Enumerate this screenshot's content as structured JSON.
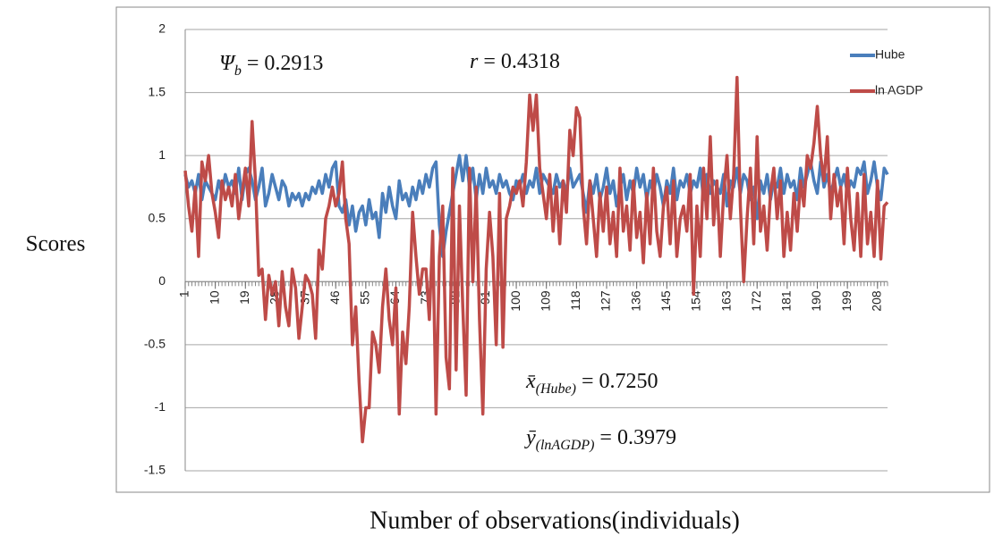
{
  "chart_data": {
    "type": "line",
    "y_axis_label": "Scores",
    "x_axis_label": "Number of observations(individuals)",
    "annotations": [
      {
        "main": "Ψ",
        "sub": "b",
        "rest": " =  0.2913"
      },
      {
        "main": "r",
        "rest": " = 0.4318"
      },
      {
        "main": "x̄",
        "sub": "(Hube)",
        "rest": " = 0.7250"
      },
      {
        "main": "ȳ",
        "sub": "(lnAGDP)",
        "rest": " = 0.3979"
      }
    ],
    "x": [
      1,
      2,
      3,
      4,
      5,
      6,
      7,
      8,
      9,
      10,
      11,
      12,
      13,
      14,
      15,
      16,
      17,
      18,
      19,
      20,
      21,
      22,
      23,
      24,
      25,
      26,
      27,
      28,
      29,
      30,
      31,
      32,
      33,
      34,
      35,
      36,
      37,
      38,
      39,
      40,
      41,
      42,
      43,
      44,
      45,
      46,
      47,
      48,
      49,
      50,
      51,
      52,
      53,
      54,
      55,
      56,
      57,
      58,
      59,
      60,
      61,
      62,
      63,
      64,
      65,
      66,
      67,
      68,
      69,
      70,
      71,
      72,
      73,
      74,
      75,
      76,
      77,
      78,
      79,
      80,
      81,
      82,
      83,
      84,
      85,
      86,
      87,
      88,
      89,
      90,
      91,
      92,
      93,
      94,
      95,
      96,
      97,
      98,
      99,
      100,
      101,
      102,
      103,
      104,
      105,
      106,
      107,
      108,
      109,
      110,
      111,
      112,
      113,
      114,
      115,
      116,
      117,
      118,
      119,
      120,
      121,
      122,
      123,
      124,
      125,
      126,
      127,
      128,
      129,
      130,
      131,
      132,
      133,
      134,
      135,
      136,
      137,
      138,
      139,
      140,
      141,
      142,
      143,
      144,
      145,
      146,
      147,
      148,
      149,
      150,
      151,
      152,
      153,
      154,
      155,
      156,
      157,
      158,
      159,
      160,
      161,
      162,
      163,
      164,
      165,
      166,
      167,
      168,
      169,
      170,
      171,
      172,
      173,
      174,
      175,
      176,
      177,
      178,
      179,
      180,
      181,
      182,
      183,
      184,
      185,
      186,
      187,
      188,
      189,
      190,
      191,
      192,
      193,
      194,
      195,
      196,
      197,
      198,
      199,
      200,
      201,
      202,
      203,
      204,
      205,
      206,
      207,
      208,
      209,
      210,
      211
    ],
    "xlim": [
      1,
      211
    ],
    "xticks": [
      1,
      10,
      19,
      28,
      37,
      46,
      55,
      64,
      73,
      82,
      91,
      100,
      109,
      118,
      127,
      136,
      145,
      154,
      163,
      172,
      181,
      190,
      199,
      208
    ],
    "ylim": [
      -1.5,
      2
    ],
    "yticks": [
      -1.5,
      -1,
      -0.5,
      0,
      0.5,
      1,
      1.5,
      2
    ],
    "grid": true,
    "legend": "upper right",
    "series": [
      {
        "name": "Hube",
        "color": "#4a7ebb",
        "values": [
          0.85,
          0.75,
          0.8,
          0.7,
          0.85,
          0.65,
          0.8,
          0.75,
          0.7,
          0.65,
          0.8,
          0.7,
          0.85,
          0.75,
          0.8,
          0.7,
          0.9,
          0.65,
          0.85,
          0.9,
          0.8,
          0.65,
          0.75,
          0.9,
          0.6,
          0.7,
          0.85,
          0.75,
          0.65,
          0.8,
          0.75,
          0.6,
          0.7,
          0.65,
          0.7,
          0.6,
          0.7,
          0.65,
          0.75,
          0.7,
          0.8,
          0.7,
          0.85,
          0.75,
          0.9,
          0.95,
          0.6,
          0.55,
          0.65,
          0.45,
          0.6,
          0.4,
          0.55,
          0.6,
          0.45,
          0.65,
          0.5,
          0.55,
          0.35,
          0.7,
          0.55,
          0.75,
          0.6,
          0.5,
          0.8,
          0.65,
          0.7,
          0.6,
          0.75,
          0.65,
          0.8,
          0.7,
          0.85,
          0.75,
          0.9,
          0.95,
          0.45,
          0.2,
          0.4,
          0.55,
          0.7,
          0.85,
          1.0,
          0.8,
          1.0,
          0.75,
          0.9,
          0.65,
          0.85,
          0.7,
          0.9,
          0.75,
          0.8,
          0.7,
          0.85,
          0.75,
          0.8,
          0.7,
          0.65,
          0.8,
          0.75,
          0.85,
          0.7,
          0.8,
          0.75,
          0.9,
          0.7,
          0.85,
          0.8,
          0.75,
          0.7,
          0.85,
          0.75,
          0.8,
          0.7,
          0.9,
          0.75,
          0.8,
          0.85,
          0.7,
          0.55,
          0.8,
          0.7,
          0.85,
          0.65,
          0.75,
          0.9,
          0.7,
          0.8,
          0.6,
          0.75,
          0.85,
          0.65,
          0.8,
          0.7,
          0.9,
          0.75,
          0.85,
          0.65,
          0.8,
          0.7,
          0.85,
          0.75,
          0.6,
          0.8,
          0.7,
          0.9,
          0.65,
          0.8,
          0.75,
          0.85,
          0.7,
          0.8,
          0.75,
          0.9,
          0.65,
          0.85,
          0.7,
          0.8,
          0.75,
          0.7,
          0.85,
          0.6,
          0.8,
          0.75,
          0.9,
          0.7,
          0.85,
          0.8,
          0.65,
          0.75,
          0.5,
          0.8,
          0.7,
          0.85,
          0.65,
          0.8,
          0.75,
          0.9,
          0.7,
          0.85,
          0.75,
          0.8,
          0.65,
          0.9,
          0.75,
          0.85,
          0.95,
          0.8,
          0.7,
          0.95,
          0.75,
          0.85,
          0.7,
          0.8,
          0.9,
          0.75,
          0.85,
          0.7,
          0.8,
          0.75,
          0.9,
          0.85,
          0.95,
          0.7,
          0.8,
          0.95,
          0.75,
          0.65,
          0.9,
          0.85
        ]
      },
      {
        "name": "ln AGDP",
        "color": "#be4b48",
        "values": [
          0.88,
          0.6,
          0.4,
          0.75,
          0.2,
          0.95,
          0.8,
          1.0,
          0.7,
          0.55,
          0.35,
          0.8,
          0.65,
          0.75,
          0.6,
          0.85,
          0.5,
          0.7,
          0.9,
          0.6,
          1.27,
          0.8,
          0.05,
          0.1,
          -0.3,
          0.05,
          -0.1,
          0.0,
          -0.35,
          0.08,
          -0.2,
          -0.35,
          0.1,
          -0.05,
          -0.45,
          -0.2,
          0.05,
          0.0,
          -0.1,
          -0.45,
          0.25,
          0.1,
          0.5,
          0.6,
          0.75,
          0.6,
          0.7,
          0.95,
          0.5,
          0.3,
          -0.5,
          -0.2,
          -0.8,
          -1.27,
          -1.0,
          -1.0,
          -0.4,
          -0.5,
          -0.72,
          -0.2,
          0.1,
          -0.3,
          -0.5,
          -0.05,
          -1.05,
          -0.4,
          -0.65,
          -0.2,
          0.55,
          0.2,
          -0.1,
          0.1,
          0.1,
          -0.3,
          0.4,
          -1.05,
          0.2,
          0.6,
          -0.6,
          -0.85,
          0.9,
          -0.7,
          0.6,
          -0.2,
          -0.9,
          0.9,
          0.0,
          0.75,
          -0.3,
          -1.05,
          0.1,
          0.55,
          0.2,
          -0.5,
          0.7,
          -0.52,
          0.5,
          0.6,
          0.75,
          0.7,
          0.8,
          0.6,
          0.95,
          1.48,
          1.2,
          1.48,
          0.9,
          0.7,
          0.5,
          0.85,
          0.4,
          0.75,
          0.3,
          0.8,
          0.55,
          1.2,
          1.0,
          1.38,
          1.3,
          0.6,
          0.3,
          0.8,
          0.5,
          0.2,
          0.7,
          0.4,
          0.75,
          0.3,
          0.55,
          0.2,
          0.9,
          0.4,
          0.6,
          0.25,
          0.8,
          0.35,
          0.55,
          0.15,
          0.7,
          0.3,
          0.9,
          0.4,
          0.2,
          0.6,
          0.75,
          0.3,
          0.8,
          0.2,
          0.5,
          0.6,
          0.4,
          0.85,
          -0.1,
          0.6,
          0.2,
          0.9,
          0.5,
          1.15,
          0.45,
          0.8,
          0.2,
          0.7,
          1.0,
          0.5,
          0.85,
          1.62,
          0.6,
          0.0,
          0.5,
          0.9,
          0.3,
          1.15,
          0.4,
          0.6,
          0.25,
          0.7,
          0.9,
          0.5,
          0.8,
          0.2,
          0.55,
          0.25,
          0.7,
          0.4,
          0.8,
          0.6,
          1.0,
          0.9,
          1.1,
          1.39,
          1.0,
          0.8,
          1.15,
          0.5,
          0.85,
          0.6,
          0.75,
          0.3,
          0.9,
          0.5,
          0.25,
          0.7,
          0.2,
          0.85,
          0.3,
          0.55,
          0.2,
          0.8,
          0.18,
          0.6,
          0.63
        ]
      }
    ]
  }
}
